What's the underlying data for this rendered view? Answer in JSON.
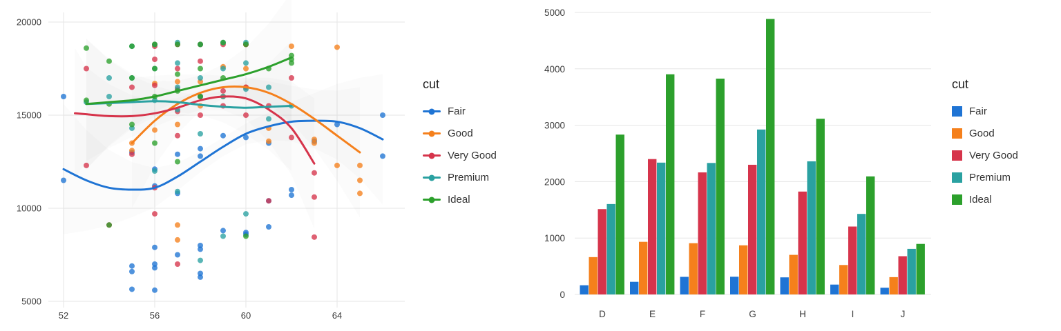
{
  "palette": {
    "Fair": "#1f74d4",
    "Good": "#f5801c",
    "Very Good": "#d6344b",
    "Premium": "#2aa1a1",
    "Ideal": "#2ca02c"
  },
  "legend": {
    "title": "cut",
    "items": [
      "Fair",
      "Good",
      "Very Good",
      "Premium",
      "Ideal"
    ]
  },
  "axis_style": {
    "grid_color": "#e5e5e5",
    "tick_color": "#3c3c3c",
    "band_color": "#999999"
  },
  "chart_data": [
    {
      "type": "scatter",
      "title": "",
      "xlabel": "",
      "ylabel": "",
      "x_ticks": [
        52,
        56,
        60,
        64
      ],
      "y_ticks": [
        5000,
        10000,
        15000,
        20000
      ],
      "xlim": [
        51.3,
        66.5
      ],
      "ylim": [
        4800,
        20400
      ],
      "grid": true,
      "legend_position": "right",
      "series": [
        {
          "name": "Fair",
          "points": [
            [
              52,
              16000
            ],
            [
              52,
              11500
            ],
            [
              55,
              6900
            ],
            [
              55,
              6600
            ],
            [
              55,
              5650
            ],
            [
              55,
              13000
            ],
            [
              56,
              5600
            ],
            [
              56,
              6800
            ],
            [
              56,
              7000
            ],
            [
              56,
              7900
            ],
            [
              56,
              11200
            ],
            [
              56,
              12100
            ],
            [
              57,
              7500
            ],
            [
              57,
              10800
            ],
            [
              57,
              12900
            ],
            [
              58,
              6300
            ],
            [
              58,
              6500
            ],
            [
              58,
              7800
            ],
            [
              58,
              8000
            ],
            [
              58,
              12800
            ],
            [
              58,
              13200
            ],
            [
              59,
              8800
            ],
            [
              59,
              13900
            ],
            [
              60,
              8600
            ],
            [
              60,
              8700
            ],
            [
              60,
              13800
            ],
            [
              61,
              9000
            ],
            [
              61,
              10400
            ],
            [
              61,
              13500
            ],
            [
              62,
              10700
            ],
            [
              62,
              11000
            ],
            [
              63,
              13600
            ],
            [
              64,
              14500
            ],
            [
              66,
              15000
            ],
            [
              66,
              12800
            ]
          ],
          "trend": [
            [
              52,
              12100
            ],
            [
              53,
              11500
            ],
            [
              54,
              11100
            ],
            [
              55,
              11000
            ],
            [
              56,
              11100
            ],
            [
              57,
              11700
            ],
            [
              58,
              12500
            ],
            [
              59,
              13300
            ],
            [
              60,
              14000
            ],
            [
              61,
              14400
            ],
            [
              62,
              14650
            ],
            [
              63,
              14700
            ],
            [
              64,
              14650
            ],
            [
              65,
              14300
            ],
            [
              66,
              13700
            ]
          ]
        },
        {
          "name": "Good",
          "points": [
            [
              55,
              13500
            ],
            [
              55,
              13100
            ],
            [
              56,
              14200
            ],
            [
              56,
              16700
            ],
            [
              56,
              18800
            ],
            [
              57,
              8300
            ],
            [
              57,
              9100
            ],
            [
              57,
              14500
            ],
            [
              57,
              16800
            ],
            [
              58,
              15500
            ],
            [
              58,
              16800
            ],
            [
              58,
              18800
            ],
            [
              59,
              16000
            ],
            [
              59,
              17600
            ],
            [
              60,
              16500
            ],
            [
              60,
              17500
            ],
            [
              60,
              18800
            ],
            [
              61,
              13600
            ],
            [
              61,
              14300
            ],
            [
              62,
              18700
            ],
            [
              63,
              13500
            ],
            [
              63,
              13700
            ],
            [
              64,
              12300
            ],
            [
              64,
              18650
            ],
            [
              65,
              10800
            ],
            [
              65,
              11500
            ],
            [
              65,
              12300
            ]
          ],
          "trend": [
            [
              55,
              13500
            ],
            [
              56,
              14700
            ],
            [
              57,
              15600
            ],
            [
              58,
              16200
            ],
            [
              59,
              16500
            ],
            [
              60,
              16500
            ],
            [
              61,
              16200
            ],
            [
              62,
              15600
            ],
            [
              63,
              14800
            ],
            [
              64,
              13900
            ],
            [
              65,
              13000
            ]
          ]
        },
        {
          "name": "Very Good",
          "points": [
            [
              53,
              12300
            ],
            [
              53,
              17500
            ],
            [
              54,
              9100
            ],
            [
              55,
              12900
            ],
            [
              55,
              16500
            ],
            [
              56,
              9700
            ],
            [
              56,
              11100
            ],
            [
              56,
              16600
            ],
            [
              56,
              18000
            ],
            [
              56,
              18700
            ],
            [
              57,
              7000
            ],
            [
              57,
              13900
            ],
            [
              57,
              15200
            ],
            [
              57,
              16400
            ],
            [
              57,
              17500
            ],
            [
              57,
              18800
            ],
            [
              58,
              15000
            ],
            [
              58,
              16000
            ],
            [
              58,
              17900
            ],
            [
              58,
              18800
            ],
            [
              59,
              15500
            ],
            [
              59,
              16300
            ],
            [
              59,
              18800
            ],
            [
              60,
              15000
            ],
            [
              60,
              16500
            ],
            [
              60,
              18800
            ],
            [
              61,
              10400
            ],
            [
              61,
              15500
            ],
            [
              62,
              13800
            ],
            [
              62,
              17000
            ],
            [
              63,
              8450
            ],
            [
              63,
              10600
            ],
            [
              63,
              11900
            ]
          ],
          "trend": [
            [
              52.5,
              15100
            ],
            [
              53,
              15050
            ],
            [
              54,
              14950
            ],
            [
              55,
              14950
            ],
            [
              56,
              15100
            ],
            [
              57,
              15400
            ],
            [
              58,
              15800
            ],
            [
              59,
              16000
            ],
            [
              60,
              15900
            ],
            [
              61,
              15300
            ],
            [
              62,
              14300
            ],
            [
              63,
              12400
            ]
          ]
        },
        {
          "name": "Premium",
          "points": [
            [
              53,
              15700
            ],
            [
              54,
              16000
            ],
            [
              54,
              17000
            ],
            [
              55,
              14300
            ],
            [
              55,
              17000
            ],
            [
              55,
              18700
            ],
            [
              56,
              12000
            ],
            [
              56,
              15800
            ],
            [
              56,
              17500
            ],
            [
              56,
              18800
            ],
            [
              57,
              10900
            ],
            [
              57,
              15300
            ],
            [
              57,
              16500
            ],
            [
              57,
              17800
            ],
            [
              57,
              18900
            ],
            [
              58,
              7200
            ],
            [
              58,
              14000
            ],
            [
              58,
              16000
            ],
            [
              58,
              17000
            ],
            [
              58,
              18800
            ],
            [
              59,
              8500
            ],
            [
              59,
              16000
            ],
            [
              59,
              17500
            ],
            [
              59,
              18900
            ],
            [
              60,
              9700
            ],
            [
              60,
              16400
            ],
            [
              60,
              17800
            ],
            [
              60,
              18900
            ],
            [
              61,
              14800
            ],
            [
              61,
              16500
            ],
            [
              62,
              15500
            ]
          ],
          "trend": [
            [
              53,
              15600
            ],
            [
              54,
              15650
            ],
            [
              55,
              15700
            ],
            [
              56,
              15750
            ],
            [
              57,
              15700
            ],
            [
              58,
              15550
            ],
            [
              59,
              15450
            ],
            [
              60,
              15400
            ],
            [
              61,
              15450
            ],
            [
              62,
              15500
            ]
          ]
        },
        {
          "name": "Ideal",
          "points": [
            [
              53,
              15800
            ],
            [
              53,
              18600
            ],
            [
              54,
              9100
            ],
            [
              54,
              15600
            ],
            [
              54,
              17900
            ],
            [
              55,
              14500
            ],
            [
              55,
              17000
            ],
            [
              55,
              18700
            ],
            [
              56,
              13500
            ],
            [
              56,
              16000
            ],
            [
              56,
              17500
            ],
            [
              56,
              18800
            ],
            [
              57,
              12500
            ],
            [
              57,
              16300
            ],
            [
              57,
              17200
            ],
            [
              57,
              18800
            ],
            [
              58,
              16000
            ],
            [
              58,
              17500
            ],
            [
              58,
              18800
            ],
            [
              59,
              17000
            ],
            [
              59,
              18900
            ],
            [
              60,
              8500
            ],
            [
              60,
              18800
            ],
            [
              61,
              17500
            ],
            [
              62,
              17800
            ],
            [
              62,
              18000
            ],
            [
              62,
              18200
            ]
          ],
          "trend": [
            [
              53,
              15600
            ],
            [
              54,
              15700
            ],
            [
              55,
              15800
            ],
            [
              56,
              16000
            ],
            [
              57,
              16300
            ],
            [
              58,
              16600
            ],
            [
              59,
              16900
            ],
            [
              60,
              17200
            ],
            [
              61,
              17600
            ],
            [
              62,
              18100
            ]
          ]
        }
      ]
    },
    {
      "type": "bar",
      "title": "",
      "xlabel": "",
      "ylabel": "",
      "categories": [
        "D",
        "E",
        "F",
        "G",
        "H",
        "I",
        "J"
      ],
      "y_ticks": [
        0,
        1000,
        2000,
        3000,
        4000,
        5000
      ],
      "ylim": [
        0,
        5000
      ],
      "grid": true,
      "legend_position": "right",
      "series": [
        {
          "name": "Fair",
          "values": [
            163,
            224,
            312,
            314,
            303,
            175,
            119
          ]
        },
        {
          "name": "Good",
          "values": [
            662,
            933,
            909,
            871,
            702,
            522,
            307
          ]
        },
        {
          "name": "Very Good",
          "values": [
            1513,
            2400,
            2164,
            2299,
            1824,
            1204,
            678
          ]
        },
        {
          "name": "Premium",
          "values": [
            1603,
            2337,
            2331,
            2924,
            2360,
            1428,
            808
          ]
        },
        {
          "name": "Ideal",
          "values": [
            2834,
            3903,
            3826,
            4884,
            3115,
            2093,
            896
          ]
        }
      ]
    }
  ]
}
